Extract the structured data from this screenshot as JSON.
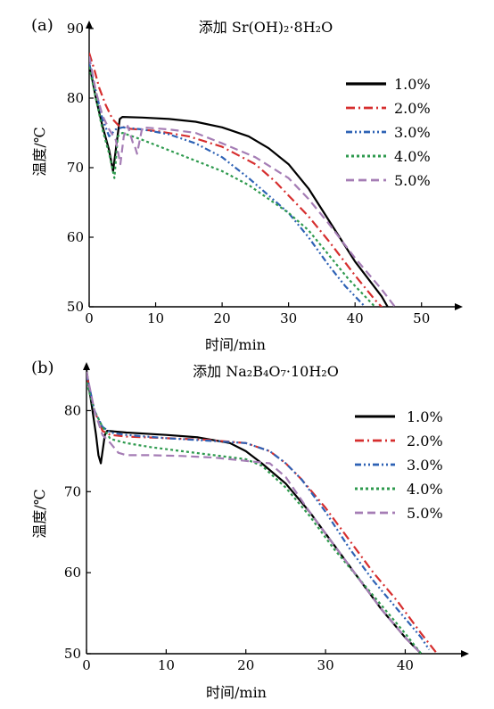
{
  "chart_data": [
    {
      "type": "line",
      "panel_label": "(a)",
      "title": "添加 Sr(OH)₂·8H₂O",
      "xlabel": "时间/min",
      "ylabel": "温度/℃",
      "xlim": [
        0,
        55
      ],
      "ylim": [
        50,
        90
      ],
      "xticks": [
        0,
        10,
        20,
        30,
        40,
        50
      ],
      "yticks": [
        50,
        60,
        70,
        80,
        90
      ],
      "grid": false,
      "legend_position": "top-right",
      "series": [
        {
          "name": "1.0%",
          "color": "#000000",
          "dash": "solid",
          "width": 2.6,
          "points": [
            [
              0,
              85
            ],
            [
              1,
              80
            ],
            [
              2,
              76
            ],
            [
              3,
              72.5
            ],
            [
              3.6,
              69.5
            ],
            [
              4.2,
              74
            ],
            [
              4.6,
              77
            ],
            [
              5,
              77.3
            ],
            [
              8,
              77.2
            ],
            [
              12,
              77
            ],
            [
              16,
              76.6
            ],
            [
              20,
              75.8
            ],
            [
              24,
              74.5
            ],
            [
              27,
              72.8
            ],
            [
              30,
              70.5
            ],
            [
              33,
              67
            ],
            [
              36,
              62.5
            ],
            [
              40,
              56.5
            ],
            [
              44,
              51.5
            ],
            [
              47,
              46.5
            ],
            [
              48.5,
              43.5
            ]
          ]
        },
        {
          "name": "2.0%",
          "color": "#d62e2e",
          "dash": "10,4,2,4",
          "width": 2.2,
          "points": [
            [
              0,
              86.5
            ],
            [
              0.8,
              84
            ],
            [
              1.5,
              81.5
            ],
            [
              2.5,
              79
            ],
            [
              3.5,
              77
            ],
            [
              4.5,
              76
            ],
            [
              6,
              75.6
            ],
            [
              10,
              75.3
            ],
            [
              15,
              74.5
            ],
            [
              20,
              73
            ],
            [
              25,
              70.5
            ],
            [
              28,
              68
            ],
            [
              30,
              66
            ],
            [
              33,
              63
            ],
            [
              36,
              59.5
            ],
            [
              40,
              54.5
            ],
            [
              43,
              51
            ],
            [
              46,
              48
            ],
            [
              47,
              47
            ]
          ]
        },
        {
          "name": "3.0%",
          "color": "#2e62b5",
          "dash": "7,3,2,3,2,3",
          "width": 2.2,
          "points": [
            [
              0,
              85
            ],
            [
              1,
              81
            ],
            [
              2,
              77
            ],
            [
              3,
              74.5
            ],
            [
              4,
              75.5
            ],
            [
              5,
              75.8
            ],
            [
              8,
              75.5
            ],
            [
              12,
              74.8
            ],
            [
              16,
              73.5
            ],
            [
              20,
              71.5
            ],
            [
              24,
              68.5
            ],
            [
              27,
              66
            ],
            [
              30,
              63.5
            ],
            [
              33,
              60
            ],
            [
              36,
              56
            ],
            [
              38.5,
              53
            ],
            [
              40,
              51.5
            ],
            [
              41.5,
              50
            ]
          ]
        },
        {
          "name": "4.0%",
          "color": "#2e9a4e",
          "dash": "3,3",
          "width": 2.4,
          "points": [
            [
              0,
              84.5
            ],
            [
              1,
              80
            ],
            [
              2,
              75.5
            ],
            [
              3,
              72
            ],
            [
              3.8,
              68.5
            ],
            [
              4.3,
              74.5
            ],
            [
              5,
              75
            ],
            [
              8,
              74
            ],
            [
              12,
              72.5
            ],
            [
              16,
              71
            ],
            [
              20,
              69.5
            ],
            [
              24,
              67.5
            ],
            [
              27,
              65.5
            ],
            [
              30,
              63.5
            ],
            [
              33,
              61
            ],
            [
              36,
              57.5
            ],
            [
              39,
              54
            ],
            [
              41,
              52
            ],
            [
              43,
              50
            ]
          ]
        },
        {
          "name": "5.0%",
          "color": "#a57db5",
          "dash": "9,5",
          "width": 2.2,
          "points": [
            [
              0,
              86
            ],
            [
              1,
              81
            ],
            [
              2,
              77.5
            ],
            [
              3,
              75.5
            ],
            [
              4,
              74
            ],
            [
              4.7,
              70.5
            ],
            [
              5.2,
              74.5
            ],
            [
              5.8,
              76
            ],
            [
              6.6,
              73.5
            ],
            [
              6.9,
              73
            ],
            [
              7.2,
              72
            ],
            [
              8,
              75.8
            ],
            [
              12,
              75.5
            ],
            [
              16,
              75
            ],
            [
              20,
              73.5
            ],
            [
              25,
              71.5
            ],
            [
              30,
              68.5
            ],
            [
              33,
              65.5
            ],
            [
              36,
              62
            ],
            [
              40,
              57
            ],
            [
              44,
              52.5
            ],
            [
              46,
              50
            ]
          ]
        }
      ]
    },
    {
      "type": "line",
      "panel_label": "(b)",
      "title": "添加 Na₂B₄O₇·10H₂O",
      "xlabel": "时间/min",
      "ylabel": "温度/℃",
      "xlim": [
        0,
        47
      ],
      "ylim": [
        50,
        85
      ],
      "xticks": [
        0,
        10,
        20,
        30,
        40
      ],
      "yticks": [
        50,
        60,
        70,
        80
      ],
      "grid": false,
      "legend_position": "top-right",
      "series": [
        {
          "name": "1.0%",
          "color": "#000000",
          "dash": "solid",
          "width": 2.4,
          "points": [
            [
              0,
              85
            ],
            [
              0.6,
              81
            ],
            [
              1.2,
              77
            ],
            [
              1.5,
              74.5
            ],
            [
              1.8,
              73.5
            ],
            [
              2.3,
              77
            ],
            [
              2.6,
              77.5
            ],
            [
              5,
              77.3
            ],
            [
              10,
              77
            ],
            [
              14,
              76.7
            ],
            [
              18,
              76
            ],
            [
              20,
              75
            ],
            [
              22,
              73.5
            ],
            [
              25,
              71
            ],
            [
              28,
              67.5
            ],
            [
              31,
              63.5
            ],
            [
              34,
              59.5
            ],
            [
              37,
              55.5
            ],
            [
              40,
              52
            ],
            [
              42,
              50
            ]
          ]
        },
        {
          "name": "2.0%",
          "color": "#d62e2e",
          "dash": "10,4,2,4",
          "width": 2.2,
          "points": [
            [
              0,
              84.5
            ],
            [
              1,
              80
            ],
            [
              2,
              77.5
            ],
            [
              3,
              77
            ],
            [
              5,
              76.8
            ],
            [
              10,
              76.6
            ],
            [
              15,
              76.4
            ],
            [
              20,
              76
            ],
            [
              23,
              75
            ],
            [
              25,
              73.5
            ],
            [
              27,
              71.5
            ],
            [
              30,
              68
            ],
            [
              33,
              64
            ],
            [
              36,
              60
            ],
            [
              39,
              56.5
            ],
            [
              42,
              52.5
            ],
            [
              44,
              50
            ]
          ]
        },
        {
          "name": "3.0%",
          "color": "#2e62b5",
          "dash": "7,3,2,3,2,3",
          "width": 2.2,
          "points": [
            [
              0,
              84.5
            ],
            [
              1,
              80
            ],
            [
              2,
              78
            ],
            [
              3,
              77.3
            ],
            [
              5,
              77
            ],
            [
              10,
              76.6
            ],
            [
              15,
              76.3
            ],
            [
              20,
              76
            ],
            [
              23,
              75
            ],
            [
              25,
              73.5
            ],
            [
              27,
              71.5
            ],
            [
              30,
              67.5
            ],
            [
              33,
              63
            ],
            [
              36,
              59
            ],
            [
              39,
              55.5
            ],
            [
              42,
              52
            ],
            [
              43,
              50.5
            ]
          ]
        },
        {
          "name": "4.0%",
          "color": "#2e9a4e",
          "dash": "3,3",
          "width": 2.4,
          "points": [
            [
              0,
              83.5
            ],
            [
              1,
              80
            ],
            [
              2,
              78
            ],
            [
              3,
              76.5
            ],
            [
              5,
              76
            ],
            [
              8,
              75.5
            ],
            [
              12,
              75
            ],
            [
              16,
              74.5
            ],
            [
              20,
              74
            ],
            [
              22,
              73.2
            ],
            [
              25,
              70.5
            ],
            [
              28,
              67
            ],
            [
              31,
              63
            ],
            [
              34,
              59.5
            ],
            [
              37,
              56
            ],
            [
              40,
              52.5
            ],
            [
              42,
              50
            ]
          ]
        },
        {
          "name": "5.0%",
          "color": "#a57db5",
          "dash": "9,5",
          "width": 2.2,
          "points": [
            [
              0,
              84.8
            ],
            [
              1,
              80
            ],
            [
              2,
              77
            ],
            [
              3,
              76
            ],
            [
              4,
              74.8
            ],
            [
              5,
              74.5
            ],
            [
              8,
              74.5
            ],
            [
              12,
              74.4
            ],
            [
              16,
              74.2
            ],
            [
              20,
              73.8
            ],
            [
              23,
              73.5
            ],
            [
              25,
              71.8
            ],
            [
              28,
              67.5
            ],
            [
              31,
              63.5
            ],
            [
              34,
              59.5
            ],
            [
              37,
              55.5
            ],
            [
              40,
              52
            ],
            [
              42,
              50
            ]
          ]
        }
      ]
    }
  ]
}
